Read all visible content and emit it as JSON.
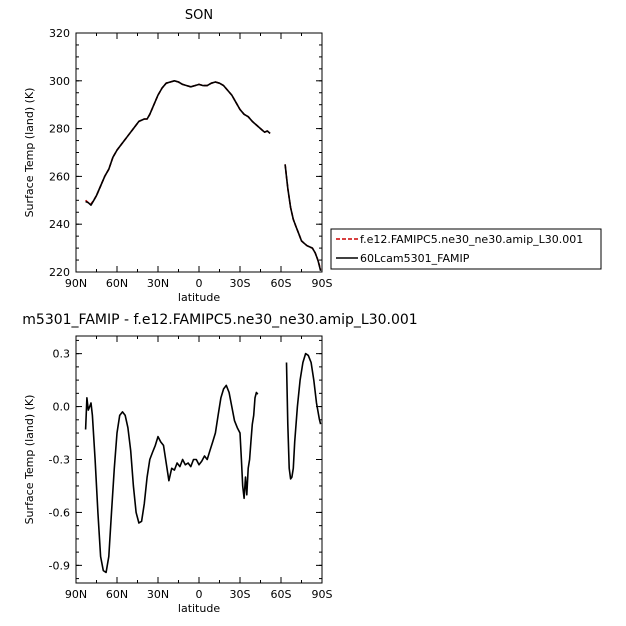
{
  "chart_data": [
    {
      "type": "line",
      "title": "SON",
      "xlabel": "latitude",
      "ylabel": "Surface Temp (land) (K)",
      "xlim": [
        -90,
        90
      ],
      "ylim": [
        220,
        320
      ],
      "xticks": [
        -90,
        -60,
        -30,
        0,
        30,
        60,
        90
      ],
      "xtick_labels": [
        "90N",
        "60N",
        "30N",
        "0",
        "30S",
        "60S",
        "90S"
      ],
      "yticks": [
        220,
        240,
        260,
        280,
        300,
        320
      ],
      "ytick_labels": [
        "220",
        "240",
        "260",
        "280",
        "300",
        "320"
      ],
      "legend_position": "right",
      "series": [
        {
          "name": "f.e12.FAMIPC5.ne30_ne30.amip_L30.001",
          "color": "#cc0000",
          "dash": "dashed",
          "segments": [
            [
              [
                -83,
                250
              ],
              [
                -81,
                249
              ],
              [
                -79,
                248.5
              ],
              [
                -77,
                250
              ],
              [
                -75,
                252
              ],
              [
                -72,
                256
              ],
              [
                -69,
                260
              ],
              [
                -66,
                263
              ],
              [
                -63,
                268
              ],
              [
                -60,
                271
              ],
              [
                -56,
                274
              ],
              [
                -52,
                277
              ],
              [
                -48,
                280
              ],
              [
                -44,
                283
              ],
              [
                -40,
                284
              ],
              [
                -38,
                284
              ],
              [
                -36,
                286
              ],
              [
                -33,
                290
              ],
              [
                -30,
                294
              ],
              [
                -27,
                297
              ],
              [
                -24,
                299
              ],
              [
                -21,
                299.5
              ],
              [
                -18,
                300
              ],
              [
                -15,
                299.5
              ],
              [
                -12,
                298.5
              ],
              [
                -9,
                298
              ],
              [
                -6,
                297.5
              ],
              [
                -3,
                298
              ],
              [
                0,
                298.5
              ],
              [
                3,
                298
              ],
              [
                6,
                298
              ],
              [
                9,
                299
              ],
              [
                12,
                299.5
              ],
              [
                15,
                299
              ],
              [
                18,
                298
              ],
              [
                21,
                296
              ],
              [
                24,
                294
              ],
              [
                27,
                291
              ],
              [
                30,
                288
              ],
              [
                33,
                286
              ],
              [
                36,
                285
              ],
              [
                39,
                283
              ],
              [
                42,
                281.5
              ],
              [
                45,
                280
              ],
              [
                48,
                278.5
              ],
              [
                50,
                279
              ],
              [
                52,
                278
              ]
            ],
            [
              [
                63,
                265
              ],
              [
                65,
                255
              ],
              [
                67,
                247
              ],
              [
                69,
                242
              ],
              [
                71,
                239
              ],
              [
                73,
                236
              ],
              [
                75,
                233
              ],
              [
                77,
                232
              ],
              [
                79,
                231
              ],
              [
                81,
                230.5
              ],
              [
                83,
                230
              ],
              [
                85,
                228
              ],
              [
                87,
                225
              ],
              [
                89,
                221
              ]
            ]
          ]
        },
        {
          "name": "60Lcam5301_FAMIP",
          "color": "#000000",
          "dash": "solid",
          "segments": [
            [
              [
                -83,
                249.5
              ],
              [
                -81,
                249
              ],
              [
                -79,
                248
              ],
              [
                -77,
                250
              ],
              [
                -75,
                252
              ],
              [
                -72,
                256
              ],
              [
                -69,
                260
              ],
              [
                -66,
                263
              ],
              [
                -63,
                268
              ],
              [
                -60,
                271
              ],
              [
                -56,
                274
              ],
              [
                -52,
                277
              ],
              [
                -48,
                280
              ],
              [
                -44,
                283
              ],
              [
                -40,
                284
              ],
              [
                -38,
                284
              ],
              [
                -36,
                286
              ],
              [
                -33,
                290
              ],
              [
                -30,
                294
              ],
              [
                -27,
                297
              ],
              [
                -24,
                299
              ],
              [
                -21,
                299.5
              ],
              [
                -18,
                300
              ],
              [
                -15,
                299.5
              ],
              [
                -12,
                298.5
              ],
              [
                -9,
                298
              ],
              [
                -6,
                297.5
              ],
              [
                -3,
                298
              ],
              [
                0,
                298.5
              ],
              [
                3,
                298
              ],
              [
                6,
                298
              ],
              [
                9,
                299
              ],
              [
                12,
                299.5
              ],
              [
                15,
                299
              ],
              [
                18,
                298
              ],
              [
                21,
                296
              ],
              [
                24,
                294
              ],
              [
                27,
                291
              ],
              [
                30,
                288
              ],
              [
                33,
                286
              ],
              [
                36,
                285
              ],
              [
                39,
                283
              ],
              [
                42,
                281.5
              ],
              [
                45,
                280
              ],
              [
                48,
                278.5
              ],
              [
                50,
                279
              ],
              [
                52,
                278
              ]
            ],
            [
              [
                63,
                265
              ],
              [
                65,
                255
              ],
              [
                67,
                247
              ],
              [
                69,
                242
              ],
              [
                71,
                239
              ],
              [
                73,
                236
              ],
              [
                75,
                233
              ],
              [
                77,
                232
              ],
              [
                79,
                231
              ],
              [
                81,
                230.5
              ],
              [
                83,
                230
              ],
              [
                85,
                228
              ],
              [
                87,
                225
              ],
              [
                89,
                220.5
              ]
            ]
          ]
        }
      ]
    },
    {
      "type": "line",
      "title": "m5301_FAMIP - f.e12.FAMIPC5.ne30_ne30.amip_L30.001",
      "xlabel": "latitude",
      "ylabel": "Surface Temp (land) (K)",
      "xlim": [
        -90,
        90
      ],
      "ylim": [
        -1.0,
        0.4
      ],
      "xticks": [
        -90,
        -60,
        -30,
        0,
        30,
        60,
        90
      ],
      "xtick_labels": [
        "90N",
        "60N",
        "30N",
        "0",
        "30S",
        "60S",
        "90S"
      ],
      "yticks": [
        -0.9,
        -0.6,
        -0.3,
        0.0,
        0.3
      ],
      "ytick_labels": [
        "-0.9",
        "-0.6",
        "-0.3",
        "0.0",
        "0.3"
      ],
      "series": [
        {
          "color": "#000000",
          "dash": "solid",
          "segments": [
            [
              [
                -83,
                -0.13
              ],
              [
                -82,
                0.05
              ],
              [
                -81,
                -0.02
              ],
              [
                -80,
                0.0
              ],
              [
                -79,
                0.02
              ],
              [
                -78,
                -0.05
              ],
              [
                -76,
                -0.3
              ],
              [
                -74,
                -0.6
              ],
              [
                -72,
                -0.85
              ],
              [
                -70,
                -0.93
              ],
              [
                -68,
                -0.94
              ],
              [
                -66,
                -0.85
              ],
              [
                -64,
                -0.6
              ],
              [
                -62,
                -0.35
              ],
              [
                -60,
                -0.15
              ],
              [
                -58,
                -0.05
              ],
              [
                -56,
                -0.03
              ],
              [
                -54,
                -0.05
              ],
              [
                -52,
                -0.12
              ],
              [
                -50,
                -0.25
              ],
              [
                -48,
                -0.45
              ],
              [
                -46,
                -0.6
              ],
              [
                -44,
                -0.66
              ],
              [
                -42,
                -0.65
              ],
              [
                -40,
                -0.55
              ],
              [
                -38,
                -0.4
              ],
              [
                -36,
                -0.3
              ],
              [
                -34,
                -0.26
              ],
              [
                -32,
                -0.22
              ],
              [
                -30,
                -0.17
              ],
              [
                -28,
                -0.2
              ],
              [
                -26,
                -0.22
              ],
              [
                -24,
                -0.32
              ],
              [
                -22,
                -0.42
              ],
              [
                -20,
                -0.35
              ],
              [
                -18,
                -0.36
              ],
              [
                -16,
                -0.32
              ],
              [
                -14,
                -0.34
              ],
              [
                -12,
                -0.3
              ],
              [
                -10,
                -0.33
              ],
              [
                -8,
                -0.32
              ],
              [
                -6,
                -0.34
              ],
              [
                -4,
                -0.3
              ],
              [
                -2,
                -0.3
              ],
              [
                0,
                -0.33
              ],
              [
                2,
                -0.31
              ],
              [
                4,
                -0.28
              ],
              [
                6,
                -0.3
              ],
              [
                8,
                -0.25
              ],
              [
                10,
                -0.2
              ],
              [
                12,
                -0.15
              ],
              [
                14,
                -0.05
              ],
              [
                16,
                0.05
              ],
              [
                18,
                0.1
              ],
              [
                20,
                0.12
              ],
              [
                22,
                0.08
              ],
              [
                24,
                0.0
              ],
              [
                26,
                -0.08
              ],
              [
                28,
                -0.12
              ],
              [
                30,
                -0.15
              ],
              [
                31,
                -0.3
              ],
              [
                32,
                -0.45
              ],
              [
                33,
                -0.52
              ],
              [
                34,
                -0.4
              ],
              [
                35,
                -0.5
              ],
              [
                36,
                -0.35
              ],
              [
                37,
                -0.3
              ],
              [
                38,
                -0.2
              ],
              [
                39,
                -0.1
              ],
              [
                40,
                -0.05
              ],
              [
                41,
                0.05
              ],
              [
                42,
                0.08
              ],
              [
                43,
                0.07
              ]
            ],
            [
              [
                64,
                0.25
              ],
              [
                65,
                -0.1
              ],
              [
                66,
                -0.35
              ],
              [
                67,
                -0.41
              ],
              [
                68,
                -0.4
              ],
              [
                69,
                -0.35
              ],
              [
                70,
                -0.2
              ],
              [
                72,
                0.0
              ],
              [
                74,
                0.15
              ],
              [
                76,
                0.25
              ],
              [
                78,
                0.3
              ],
              [
                80,
                0.29
              ],
              [
                82,
                0.25
              ],
              [
                84,
                0.15
              ],
              [
                86,
                0.02
              ],
              [
                88,
                -0.07
              ],
              [
                89,
                -0.1
              ]
            ]
          ]
        }
      ]
    }
  ]
}
